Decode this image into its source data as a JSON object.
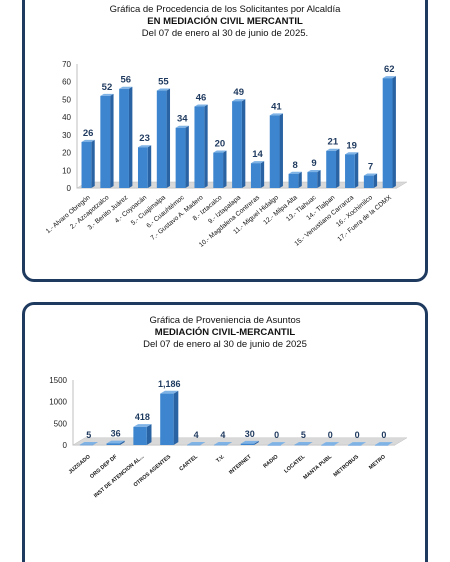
{
  "chart_data": [
    {
      "type": "bar",
      "title_line1": "Gráfica de Procedencia de los Solicitantes por Alcaldía",
      "title_line2": "EN MEDIACIÓN CIVIL MERCANTIL",
      "title_line3": "Del 07 de enero al 30 de junio de 2025.",
      "categories": [
        "1.- Alvaro Obregón",
        "2.- Azcapotzalco",
        "3.- Benito Juárez",
        "4.- Coyoacán",
        "5.- Cuajimalpa",
        "6.- Cuauhtémoc",
        "7.- Gustavo A. Madero",
        "8.- Iztacalco",
        "9.- Iztapalapa",
        "10.- Magdalena Contreras",
        "11.- Miguel Hidalgo",
        "12.- Milpa Alta",
        "13.- Tlahuac",
        "14.- Tlalpan",
        "15.- Venustiano Carranza",
        "16.- Xochimilco",
        "17.- Fuera de la CDMX"
      ],
      "values": [
        26,
        52,
        56,
        23,
        55,
        34,
        46,
        20,
        49,
        14,
        41,
        8,
        9,
        21,
        19,
        7,
        62
      ],
      "yticks": [
        "0",
        "10",
        "20",
        "30",
        "40",
        "50",
        "60",
        "70"
      ],
      "ylim": [
        0,
        70
      ],
      "grid": false,
      "bar_color": "#3d86cf"
    },
    {
      "type": "bar",
      "title_line1": "Gráfica de Proveniencia de Asuntos",
      "title_line2": "MEDIACIÓN CIVIL-MERCANTIL",
      "title_line3": "Del  07 de enero al  30 de junio de  2025",
      "categories": [
        "JUZGADO",
        "ORG DEP DF",
        "INST DE ATENCION AL...",
        "OTROS AGENTES",
        "CARTEL",
        "T.V.",
        "INTERNET",
        "RADIO",
        "LOCATEL",
        "MANTA PUBL",
        "METROBUS",
        "METRO"
      ],
      "values": [
        5,
        36,
        418,
        1186,
        4,
        4,
        30,
        0,
        5,
        0,
        0,
        0
      ],
      "value_labels": [
        "5",
        "36",
        "418",
        "1,186",
        "4",
        "4",
        "30",
        "0",
        "5",
        "0",
        "0",
        "0"
      ],
      "yticks": [
        "0",
        "500",
        "1000",
        "1500"
      ],
      "ylim": [
        0,
        1500
      ],
      "grid": false,
      "bar_color": "#3d86cf"
    }
  ]
}
